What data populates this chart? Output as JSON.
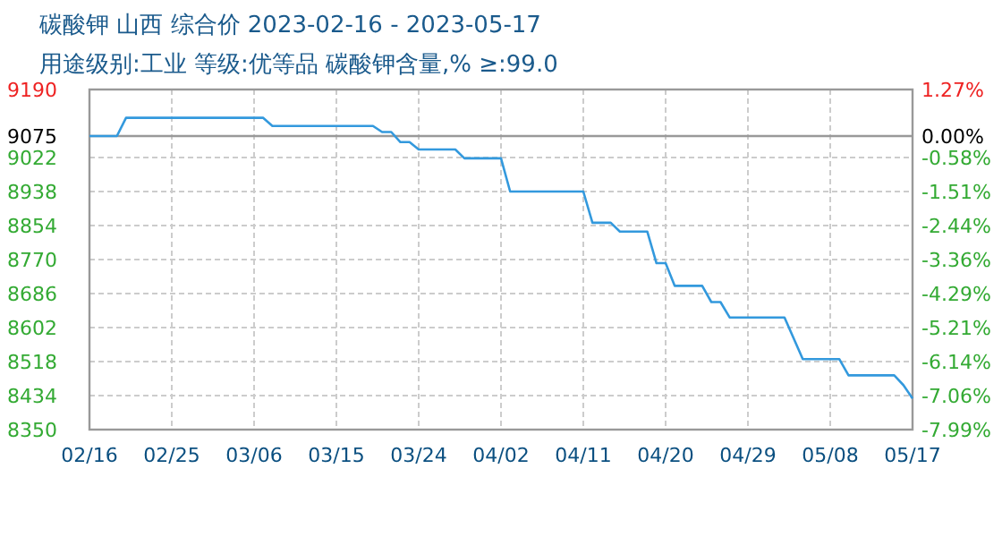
{
  "chart_data": {
    "type": "line",
    "title": "碳酸钾 山西 综合价 2023-02-16 - 2023-05-17",
    "subtitle": "用途级别:工业 等级:优等品 碳酸钾含量,% ≥:99.0",
    "x": [
      "2023-02-16",
      "2023-02-19",
      "2023-02-20",
      "2023-03-07",
      "2023-03-08",
      "2023-03-19",
      "2023-03-20",
      "2023-03-21",
      "2023-03-22",
      "2023-03-23",
      "2023-03-24",
      "2023-03-28",
      "2023-03-29",
      "2023-04-02",
      "2023-04-03",
      "2023-04-11",
      "2023-04-12",
      "2023-04-14",
      "2023-04-15",
      "2023-04-18",
      "2023-04-19",
      "2023-04-20",
      "2023-04-21",
      "2023-04-24",
      "2023-04-25",
      "2023-04-26",
      "2023-04-27",
      "2023-05-03",
      "2023-05-05",
      "2023-05-09",
      "2023-05-10",
      "2023-05-15",
      "2023-05-16",
      "2023-05-17"
    ],
    "series": [
      {
        "color": "#3399dd",
        "values": [
          9075,
          9075,
          9120,
          9120,
          9100,
          9100,
          9085,
          9085,
          9060,
          9060,
          9042,
          9042,
          9020,
          9020,
          8938,
          8938,
          8861,
          8861,
          8839,
          8839,
          8761,
          8761,
          8705,
          8705,
          8665,
          8665,
          8627,
          8627,
          8524,
          8524,
          8484,
          8484,
          8460,
          8427
        ]
      }
    ],
    "xlim": [
      "2023-02-16",
      "2023-05-17"
    ],
    "xticks": [
      {
        "value": "2023-02-16",
        "label": "02/16"
      },
      {
        "value": "2023-02-25",
        "label": "02/25"
      },
      {
        "value": "2023-03-06",
        "label": "03/06"
      },
      {
        "value": "2023-03-15",
        "label": "03/15"
      },
      {
        "value": "2023-03-24",
        "label": "03/24"
      },
      {
        "value": "2023-04-02",
        "label": "04/02"
      },
      {
        "value": "2023-04-11",
        "label": "04/11"
      },
      {
        "value": "2023-04-20",
        "label": "04/20"
      },
      {
        "value": "2023-04-29",
        "label": "04/29"
      },
      {
        "value": "2023-05-08",
        "label": "05/08"
      },
      {
        "value": "2023-05-17",
        "label": "05/17"
      }
    ],
    "ylim": [
      8350,
      9190
    ],
    "yticks": [
      8350,
      8434,
      8518,
      8602,
      8686,
      8770,
      8854,
      8938,
      9022,
      9075,
      9190
    ],
    "y2lim": [
      -7.99,
      1.27
    ],
    "y2ticks": [
      {
        "value": -7.99,
        "label": "-7.99%"
      },
      {
        "value": -7.06,
        "label": "-7.06%"
      },
      {
        "value": -6.14,
        "label": "-6.14%"
      },
      {
        "value": -5.21,
        "label": "-5.21%"
      },
      {
        "value": -4.29,
        "label": "-4.29%"
      },
      {
        "value": -3.36,
        "label": "-3.36%"
      },
      {
        "value": -2.44,
        "label": "-2.44%"
      },
      {
        "value": -1.51,
        "label": "-1.51%"
      },
      {
        "value": -0.58,
        "label": "-0.58%"
      },
      {
        "value": 0,
        "label": "0.00%"
      },
      {
        "value": 1.27,
        "label": "1.27%"
      }
    ],
    "ref_lines": [
      {
        "axis": "y",
        "value": 9075,
        "color": "#999999"
      }
    ],
    "grid": true,
    "marker": "none",
    "line_style": "solid"
  }
}
